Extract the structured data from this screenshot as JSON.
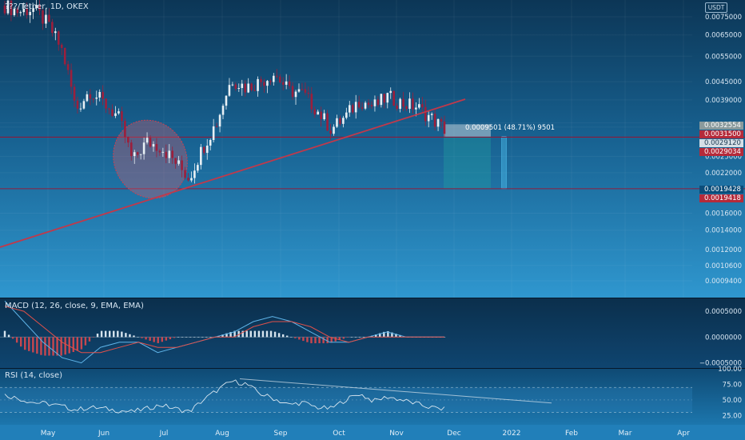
{
  "header": {
    "symbol_title": "???/Tether, 1D, OKEX",
    "currency": "USDT"
  },
  "measure": {
    "label": "0.0009501 (48.71%) 9501"
  },
  "price_badges": [
    {
      "value": "0.0032554",
      "color": "#8a9a9c"
    },
    {
      "value": "0.0031500",
      "color": "#b52a3a"
    },
    {
      "value": "0.0029120",
      "color": "#d5dfe6"
    },
    {
      "value": "0.0029034",
      "color": "#b52a3a"
    },
    {
      "value": "0.0019428",
      "color": "#0b4d7a"
    },
    {
      "value": "0.0019418",
      "color": "#b52a3a"
    }
  ],
  "panes": {
    "macd_title": "MACD (12, 26, close, 9, EMA, EMA)",
    "rsi_title": "RSI (14, close)"
  },
  "colors": {
    "candle_up": "#e8f0f5",
    "candle_down": "#9c1f3c",
    "trendline": "#c0394b",
    "hline": "#8a1a3a",
    "macd_line": "#5fb4e8",
    "signal_line": "#e0504a",
    "rsi_line": "#d8e6f0"
  },
  "chart_data": [
    {
      "type": "candlestick",
      "title": "???/Tether, 1D, OKEX",
      "y_scale": "log",
      "x_tick_labels": [
        "May",
        "Jun",
        "Jul",
        "Aug",
        "Sep",
        "Oct",
        "Nov",
        "Dec",
        "2022",
        "Feb",
        "Mar",
        "Apr"
      ],
      "y_tick_labels": [
        "0.0075000",
        "0.0065000",
        "0.0055000",
        "0.0045000",
        "0.0039000",
        "0.0032554",
        "0.0031500",
        "0.0029120",
        "0.0029034",
        "0.0025000",
        "0.0022000",
        "0.0019428",
        "0.0019418",
        "0.0016000",
        "0.0014000",
        "0.0012000",
        "0.0010600",
        "0.0009400"
      ],
      "ylim": [
        0.00086,
        0.0092
      ],
      "horizontal_lines": [
        0.00291,
        0.00194
      ],
      "series": [
        {
          "name": "close",
          "x": [
            "Apr 20",
            "Apr 27",
            "May 4",
            "May 11",
            "May 18",
            "May 25",
            "Jun 1",
            "Jun 8",
            "Jun 15",
            "Jun 22",
            "Jun 29",
            "Jul 6",
            "Jul 13",
            "Jul 20",
            "Jul 27",
            "Aug 3",
            "Aug 10",
            "Aug 17",
            "Aug 24",
            "Aug 31",
            "Sep 7",
            "Sep 14",
            "Sep 21",
            "Sep 28",
            "Oct 5",
            "Oct 12",
            "Oct 19",
            "Oct 26",
            "Nov 2",
            "Nov 9",
            "Nov 16",
            "Nov 23"
          ],
          "values": [
            0.0082,
            0.0078,
            0.008,
            0.0071,
            0.0058,
            0.0036,
            0.0042,
            0.0038,
            0.0034,
            0.0024,
            0.0028,
            0.0027,
            0.0024,
            0.0021,
            0.0027,
            0.0033,
            0.0046,
            0.0043,
            0.0045,
            0.0048,
            0.0042,
            0.0041,
            0.0036,
            0.0031,
            0.0034,
            0.0039,
            0.0037,
            0.004,
            0.0038,
            0.0037,
            0.0034,
            0.0031
          ]
        }
      ]
    },
    {
      "type": "line",
      "title": "MACD (12, 26, close, 9, EMA, EMA)",
      "y_tick_labels": [
        "0.0005000",
        "0.0000000",
        "−0.0005000"
      ],
      "ylim": [
        -0.0006,
        0.00075
      ],
      "series": [
        {
          "name": "MACD",
          "values": [
            0.0007,
            0.0003,
            -0.0001,
            -0.0004,
            -0.0005,
            -0.0002,
            -0.0001,
            -0.0001,
            -0.0003,
            -0.0002,
            -0.0001,
            0.0,
            0.0001,
            0.0003,
            0.0004,
            0.0003,
            0.0001,
            -0.0001,
            -0.0001,
            0.0,
            0.0001,
            0.0,
            0.0,
            0.0
          ]
        },
        {
          "name": "Signal",
          "values": [
            0.0006,
            0.0005,
            0.0002,
            -0.0001,
            -0.0003,
            -0.0003,
            -0.0002,
            -0.0001,
            -0.0002,
            -0.0002,
            -0.0001,
            0.0,
            0.0,
            0.0002,
            0.0003,
            0.0003,
            0.0002,
            0.0,
            -0.0001,
            0.0,
            0.0,
            0.0,
            0.0,
            0.0
          ]
        }
      ]
    },
    {
      "type": "line",
      "title": "RSI (14, close)",
      "y_tick_labels": [
        "100.00",
        "75.00",
        "50.00",
        "25.00"
      ],
      "ylim": [
        10,
        100
      ],
      "bands": [
        70,
        30
      ],
      "series": [
        {
          "name": "RSI",
          "values": [
            58,
            52,
            46,
            44,
            40,
            34,
            38,
            36,
            33,
            31,
            36,
            42,
            36,
            31,
            50,
            66,
            80,
            76,
            60,
            52,
            42,
            46,
            38,
            36,
            50,
            60,
            48,
            55,
            50,
            44,
            38,
            35
          ]
        }
      ]
    }
  ]
}
